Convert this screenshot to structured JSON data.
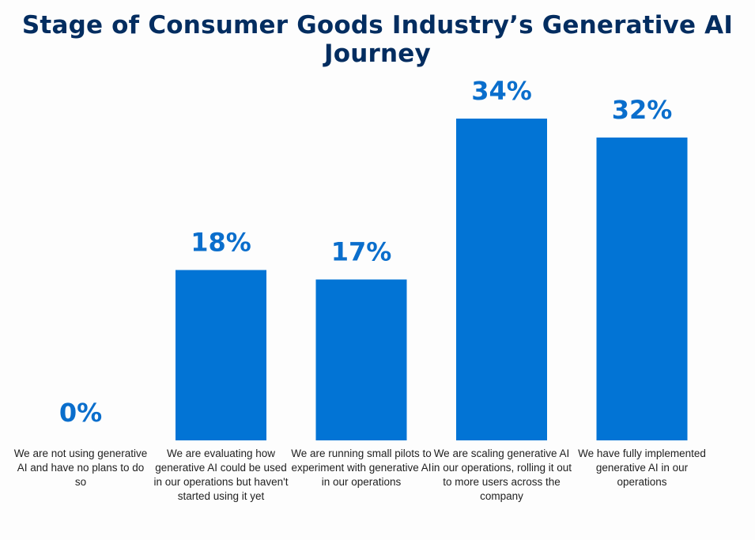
{
  "chart_data": {
    "type": "bar",
    "title": "Stage of Consumer Goods Industry’s Generative AI Journey",
    "xlabel": "",
    "ylabel": "",
    "ylim": [
      0,
      34
    ],
    "categories": [
      "We are not using generative AI and have no plans to do so",
      "We are evaluating how generative AI could be used in our operations but haven't started using it yet",
      "We are running small pilots to experiment with generative AI in our operations",
      "We are scaling generative AI in our operations, rolling it out to more users across the company",
      "We have fully implemented generative AI in our operations"
    ],
    "values": [
      0,
      18,
      17,
      34,
      32
    ],
    "data_labels": [
      "0%",
      "18%",
      "17%",
      "34%",
      "32%"
    ],
    "bar_color": "#0274d5",
    "label_color": "#0a6ecc",
    "title_color": "#032d60"
  }
}
